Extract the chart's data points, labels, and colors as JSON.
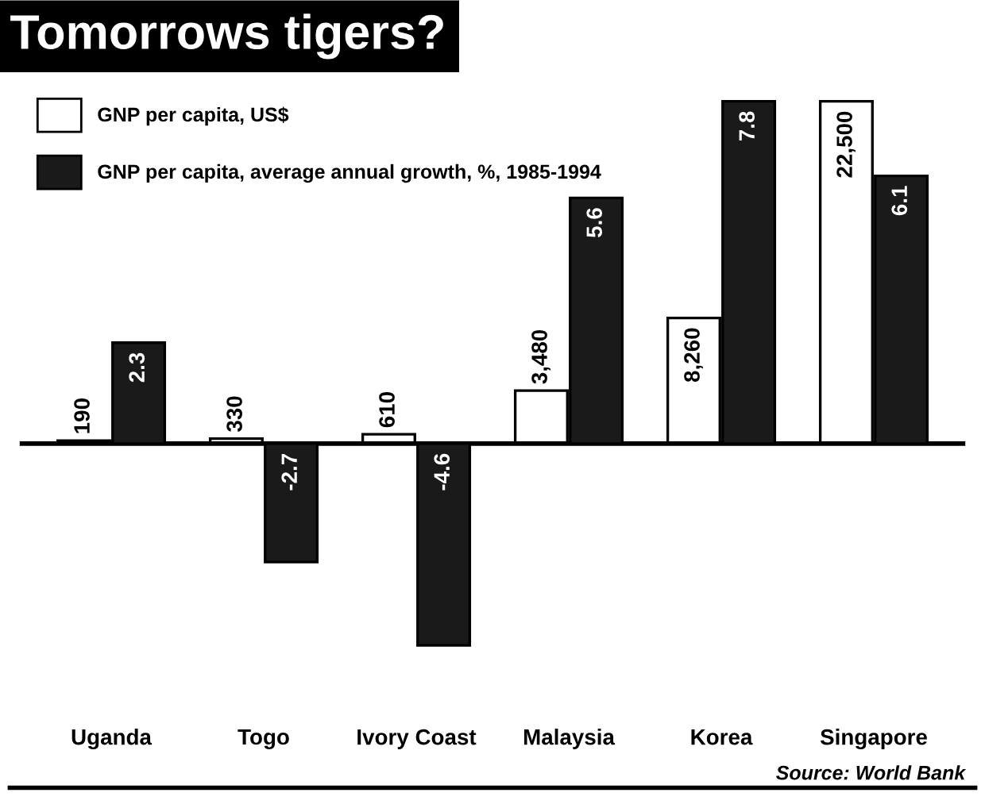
{
  "chart_data": {
    "type": "bar",
    "title": "Tomorrows tigers?",
    "categories": [
      "Uganda",
      "Togo",
      "Ivory Coast",
      "Malaysia",
      "Korea",
      "Singapore"
    ],
    "series": [
      {
        "name": "GNP per capita, US$",
        "color": "#ffffff",
        "values": [
          190,
          330,
          610,
          3480,
          8260,
          22500
        ],
        "axis": "y",
        "value_labels": [
          "190",
          "330",
          "610",
          "3,480",
          "8,260",
          "22,500"
        ]
      },
      {
        "name": "GNP per capita, average annual growth, %, 1985-1994",
        "color": "#1a1a1a",
        "values": [
          2.3,
          -2.7,
          -4.6,
          5.6,
          7.8,
          6.1
        ],
        "axis": "y2",
        "value_labels": [
          "2.3",
          "-2.7",
          "-4.6",
          "5.6",
          "7.8",
          "6.1"
        ]
      }
    ],
    "tick_labels": "x",
    "grid": false,
    "legend": "top left",
    "annotations": [
      "Source: World Bank"
    ]
  }
}
